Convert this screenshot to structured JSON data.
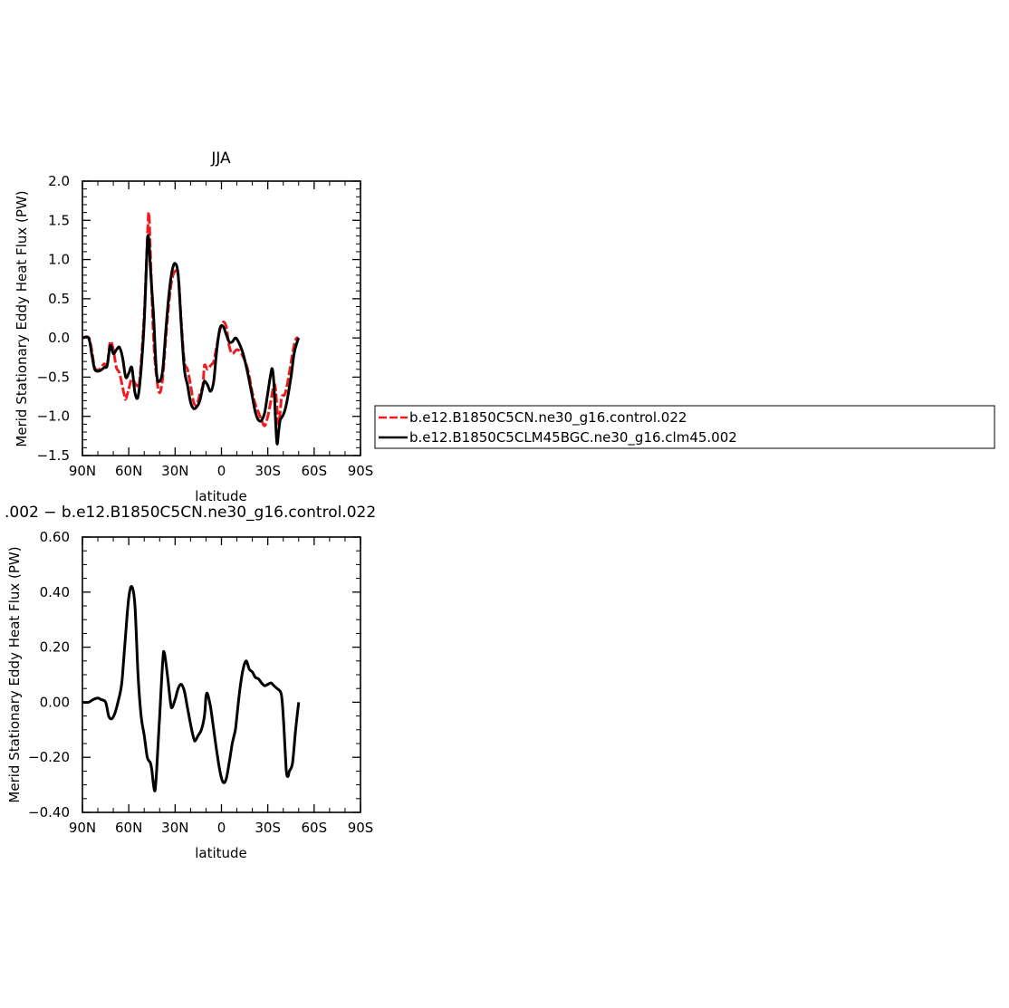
{
  "chart_data": [
    {
      "type": "line",
      "title": "JJA",
      "xlabel": "latitude",
      "ylabel": "Merid Stationary Eddy Heat Flux (PW)",
      "xlim": [
        90,
        -90
      ],
      "ylim": [
        -1.5,
        2.0
      ],
      "xticks": [
        90,
        60,
        30,
        0,
        -30,
        -60,
        -90
      ],
      "xtick_labels": [
        "90N",
        "60N",
        "30N",
        "0",
        "30S",
        "60S",
        "90S"
      ],
      "yticks": [
        -1.5,
        -1.0,
        -0.5,
        0.0,
        0.5,
        1.0,
        1.5,
        2.0
      ],
      "ytick_labels": [
        "−1.5",
        "−1.0",
        "−0.5",
        "0.0",
        "0.5",
        "1.0",
        "1.5",
        "2.0"
      ],
      "legend_position": "right",
      "series": [
        {
          "name": "b.e12.B1850C5CN.ne30_g16.control.022",
          "color": "#ee1c1c",
          "dash": "dashed",
          "points": [
            [
              90,
              0
            ],
            [
              86,
              0
            ],
            [
              84,
              -0.15
            ],
            [
              82,
              -0.38
            ],
            [
              79,
              -0.4
            ],
            [
              76,
              -0.33
            ],
            [
              74,
              -0.36
            ],
            [
              72,
              -0.05
            ],
            [
              70,
              -0.15
            ],
            [
              68,
              -0.38
            ],
            [
              66,
              -0.45
            ],
            [
              63,
              -0.72
            ],
            [
              62,
              -0.78
            ],
            [
              60,
              -0.65
            ],
            [
              58,
              -0.52
            ],
            [
              55,
              -0.6
            ],
            [
              53,
              -0.55
            ],
            [
              50,
              0.3
            ],
            [
              48,
              1.25
            ],
            [
              47,
              1.6
            ],
            [
              46,
              1.1
            ],
            [
              44,
              0.0
            ],
            [
              42,
              -0.5
            ],
            [
              40,
              -0.7
            ],
            [
              38,
              -0.5
            ],
            [
              36,
              0.0
            ],
            [
              34,
              0.45
            ],
            [
              32,
              0.75
            ],
            [
              30,
              0.85
            ],
            [
              28,
              0.82
            ],
            [
              26,
              0.2
            ],
            [
              24,
              -0.3
            ],
            [
              22,
              -0.4
            ],
            [
              20,
              -0.6
            ],
            [
              18,
              -0.82
            ],
            [
              16,
              -0.85
            ],
            [
              14,
              -0.72
            ],
            [
              12,
              -0.6
            ],
            [
              11,
              -0.35
            ],
            [
              9,
              -0.4
            ],
            [
              7,
              -0.35
            ],
            [
              5,
              -0.3
            ],
            [
              3,
              -0.1
            ],
            [
              1,
              0.1
            ],
            [
              -1,
              0.2
            ],
            [
              -3,
              0.15
            ],
            [
              -5,
              -0.1
            ],
            [
              -7,
              -0.2
            ],
            [
              -10,
              -0.15
            ],
            [
              -13,
              -0.2
            ],
            [
              -17,
              -0.4
            ],
            [
              -20,
              -0.7
            ],
            [
              -22,
              -0.85
            ],
            [
              -24,
              -0.95
            ],
            [
              -26,
              -1.05
            ],
            [
              -28,
              -1.12
            ],
            [
              -30,
              -1.0
            ],
            [
              -32,
              -0.8
            ],
            [
              -34,
              -0.6
            ],
            [
              -35,
              -0.65
            ],
            [
              -36,
              -0.9
            ],
            [
              -37,
              -1.1
            ],
            [
              -38,
              -0.95
            ],
            [
              -39,
              -0.75
            ],
            [
              -41,
              -0.72
            ],
            [
              -43,
              -0.55
            ],
            [
              -46,
              -0.2
            ],
            [
              -48,
              -0.02
            ],
            [
              -50,
              0
            ]
          ]
        },
        {
          "name": "b.e12.B1850C5CLM45BGC.ne30_g16.clm45.002",
          "color": "#000000",
          "dash": "solid",
          "points": [
            [
              90,
              0
            ],
            [
              86,
              0
            ],
            [
              84,
              -0.2
            ],
            [
              82,
              -0.4
            ],
            [
              79,
              -0.42
            ],
            [
              76,
              -0.38
            ],
            [
              74,
              -0.35
            ],
            [
              72,
              -0.1
            ],
            [
              70,
              -0.2
            ],
            [
              68,
              -0.15
            ],
            [
              66,
              -0.12
            ],
            [
              64,
              -0.25
            ],
            [
              62,
              -0.5
            ],
            [
              60,
              -0.45
            ],
            [
              58,
              -0.38
            ],
            [
              56,
              -0.7
            ],
            [
              54,
              -0.75
            ],
            [
              52,
              -0.4
            ],
            [
              50,
              0.2
            ],
            [
              48,
              1.2
            ],
            [
              47,
              1.25
            ],
            [
              46,
              0.9
            ],
            [
              44,
              0.3
            ],
            [
              42,
              -0.45
            ],
            [
              40,
              -0.55
            ],
            [
              38,
              -0.4
            ],
            [
              36,
              0.1
            ],
            [
              34,
              0.55
            ],
            [
              32,
              0.85
            ],
            [
              30,
              0.95
            ],
            [
              28,
              0.8
            ],
            [
              26,
              0.15
            ],
            [
              24,
              -0.4
            ],
            [
              22,
              -0.6
            ],
            [
              20,
              -0.82
            ],
            [
              18,
              -0.9
            ],
            [
              16,
              -0.88
            ],
            [
              14,
              -0.8
            ],
            [
              12,
              -0.62
            ],
            [
              11,
              -0.55
            ],
            [
              9,
              -0.6
            ],
            [
              7,
              -0.68
            ],
            [
              5,
              -0.55
            ],
            [
              3,
              -0.15
            ],
            [
              1,
              0.12
            ],
            [
              -1,
              0.15
            ],
            [
              -3,
              0.05
            ],
            [
              -5,
              -0.05
            ],
            [
              -7,
              -0.05
            ],
            [
              -9,
              0.0
            ],
            [
              -11,
              -0.05
            ],
            [
              -14,
              -0.2
            ],
            [
              -17,
              -0.45
            ],
            [
              -20,
              -0.75
            ],
            [
              -22,
              -0.95
            ],
            [
              -24,
              -1.05
            ],
            [
              -26,
              -1.05
            ],
            [
              -28,
              -0.95
            ],
            [
              -30,
              -0.7
            ],
            [
              -32,
              -0.45
            ],
            [
              -33,
              -0.4
            ],
            [
              -34,
              -0.6
            ],
            [
              -35,
              -1.05
            ],
            [
              -36,
              -1.35
            ],
            [
              -37,
              -1.2
            ],
            [
              -38,
              -1.05
            ],
            [
              -40,
              -0.98
            ],
            [
              -42,
              -0.85
            ],
            [
              -45,
              -0.5
            ],
            [
              -47,
              -0.2
            ],
            [
              -49,
              -0.05
            ],
            [
              -50,
              0
            ]
          ]
        }
      ]
    },
    {
      "type": "line",
      "title": ".002 − b.e12.B1850C5CN.ne30_g16.control.022",
      "xlabel": "latitude",
      "ylabel": "Merid Stationary Eddy Heat Flux (PW)",
      "xlim": [
        90,
        -90
      ],
      "ylim": [
        -0.4,
        0.6
      ],
      "xticks": [
        90,
        60,
        30,
        0,
        -30,
        -60,
        -90
      ],
      "xtick_labels": [
        "90N",
        "60N",
        "30N",
        "0",
        "30S",
        "60S",
        "90S"
      ],
      "yticks": [
        -0.4,
        -0.2,
        0.0,
        0.2,
        0.4,
        0.6
      ],
      "ytick_labels": [
        "−0.40",
        "−0.20",
        "0.00",
        "0.20",
        "0.40",
        "0.60"
      ],
      "series": [
        {
          "color": "#000000",
          "dash": "solid",
          "points": [
            [
              90,
              0
            ],
            [
              86,
              0
            ],
            [
              83,
              0.01
            ],
            [
              80,
              0.015
            ],
            [
              78,
              0.01
            ],
            [
              75,
              0.0
            ],
            [
              73,
              -0.05
            ],
            [
              71,
              -0.06
            ],
            [
              69,
              -0.04
            ],
            [
              67,
              0.0
            ],
            [
              65,
              0.05
            ],
            [
              64,
              0.1
            ],
            [
              62,
              0.25
            ],
            [
              60,
              0.38
            ],
            [
              58,
              0.42
            ],
            [
              56,
              0.35
            ],
            [
              54,
              0.1
            ],
            [
              52,
              -0.05
            ],
            [
              50,
              -0.12
            ],
            [
              48,
              -0.2
            ],
            [
              46,
              -0.22
            ],
            [
              45,
              -0.25
            ],
            [
              44,
              -0.3
            ],
            [
              43,
              -0.32
            ],
            [
              42,
              -0.25
            ],
            [
              40,
              -0.05
            ],
            [
              38,
              0.15
            ],
            [
              37,
              0.18
            ],
            [
              35,
              0.1
            ],
            [
              33,
              0.0
            ],
            [
              32,
              -0.02
            ],
            [
              30,
              0.01
            ],
            [
              28,
              0.05
            ],
            [
              26,
              0.065
            ],
            [
              24,
              0.04
            ],
            [
              22,
              -0.02
            ],
            [
              20,
              -0.08
            ],
            [
              18,
              -0.13
            ],
            [
              17,
              -0.14
            ],
            [
              15,
              -0.12
            ],
            [
              13,
              -0.1
            ],
            [
              11,
              -0.05
            ],
            [
              10,
              0.02
            ],
            [
              9,
              0.03
            ],
            [
              7,
              -0.02
            ],
            [
              5,
              -0.1
            ],
            [
              3,
              -0.18
            ],
            [
              1,
              -0.25
            ],
            [
              -1,
              -0.29
            ],
            [
              -3,
              -0.28
            ],
            [
              -5,
              -0.22
            ],
            [
              -7,
              -0.15
            ],
            [
              -9,
              -0.1
            ],
            [
              -10,
              -0.05
            ],
            [
              -12,
              0.05
            ],
            [
              -14,
              0.12
            ],
            [
              -16,
              0.15
            ],
            [
              -18,
              0.12
            ],
            [
              -20,
              0.11
            ],
            [
              -22,
              0.09
            ],
            [
              -24,
              0.085
            ],
            [
              -26,
              0.07
            ],
            [
              -28,
              0.06
            ],
            [
              -30,
              0.065
            ],
            [
              -32,
              0.07
            ],
            [
              -34,
              0.06
            ],
            [
              -36,
              0.05
            ],
            [
              -38,
              0.04
            ],
            [
              -39,
              0.02
            ],
            [
              -40,
              -0.05
            ],
            [
              -41,
              -0.15
            ],
            [
              -42,
              -0.25
            ],
            [
              -43,
              -0.27
            ],
            [
              -44,
              -0.25
            ],
            [
              -46,
              -0.22
            ],
            [
              -48,
              -0.1
            ],
            [
              -50,
              0.0
            ]
          ]
        }
      ]
    }
  ]
}
